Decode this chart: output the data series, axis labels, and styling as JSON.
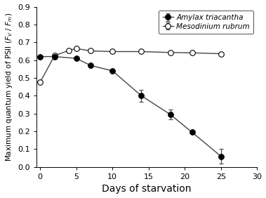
{
  "amylax_x": [
    0,
    2,
    5,
    7,
    10,
    14,
    18,
    21,
    25
  ],
  "amylax_y": [
    0.62,
    0.62,
    0.61,
    0.57,
    0.54,
    0.4,
    0.295,
    0.195,
    0.06
  ],
  "amylax_yerr": [
    0.0,
    0.0,
    0.0,
    0.0,
    0.0,
    0.035,
    0.028,
    0.0,
    0.04
  ],
  "meso_x": [
    0,
    2,
    4,
    5,
    7,
    10,
    14,
    18,
    21,
    25
  ],
  "meso_y": [
    0.475,
    0.625,
    0.655,
    0.665,
    0.652,
    0.648,
    0.648,
    0.643,
    0.641,
    0.636
  ],
  "meso_yerr": [
    0.0,
    0.0,
    0.0,
    0.0,
    0.0,
    0.0,
    0.0,
    0.0,
    0.0,
    0.0
  ],
  "xlim": [
    -0.5,
    30
  ],
  "ylim": [
    0.0,
    0.9
  ],
  "xticks": [
    0,
    5,
    10,
    15,
    20,
    25,
    30
  ],
  "yticks": [
    0.0,
    0.1,
    0.2,
    0.3,
    0.4,
    0.5,
    0.6,
    0.7,
    0.8,
    0.9
  ],
  "xlabel": "Days of starvation",
  "ylabel": "Maximum quantum yield of PSII ($F_V$ / $F_m$)",
  "legend_amylax": "Amylax triacantha",
  "legend_meso": "Mesodinium rubrum",
  "line_color": "#444444",
  "amylax_marker_face": "black",
  "amylax_marker_edge": "black",
  "meso_marker_face": "white",
  "meso_marker_edge": "black",
  "marker_size": 5.5,
  "linewidth": 1.0,
  "capsize": 2.5,
  "elinewidth": 0.9,
  "tick_fontsize": 8,
  "xlabel_fontsize": 10,
  "ylabel_fontsize": 7.5,
  "legend_fontsize": 7.5
}
